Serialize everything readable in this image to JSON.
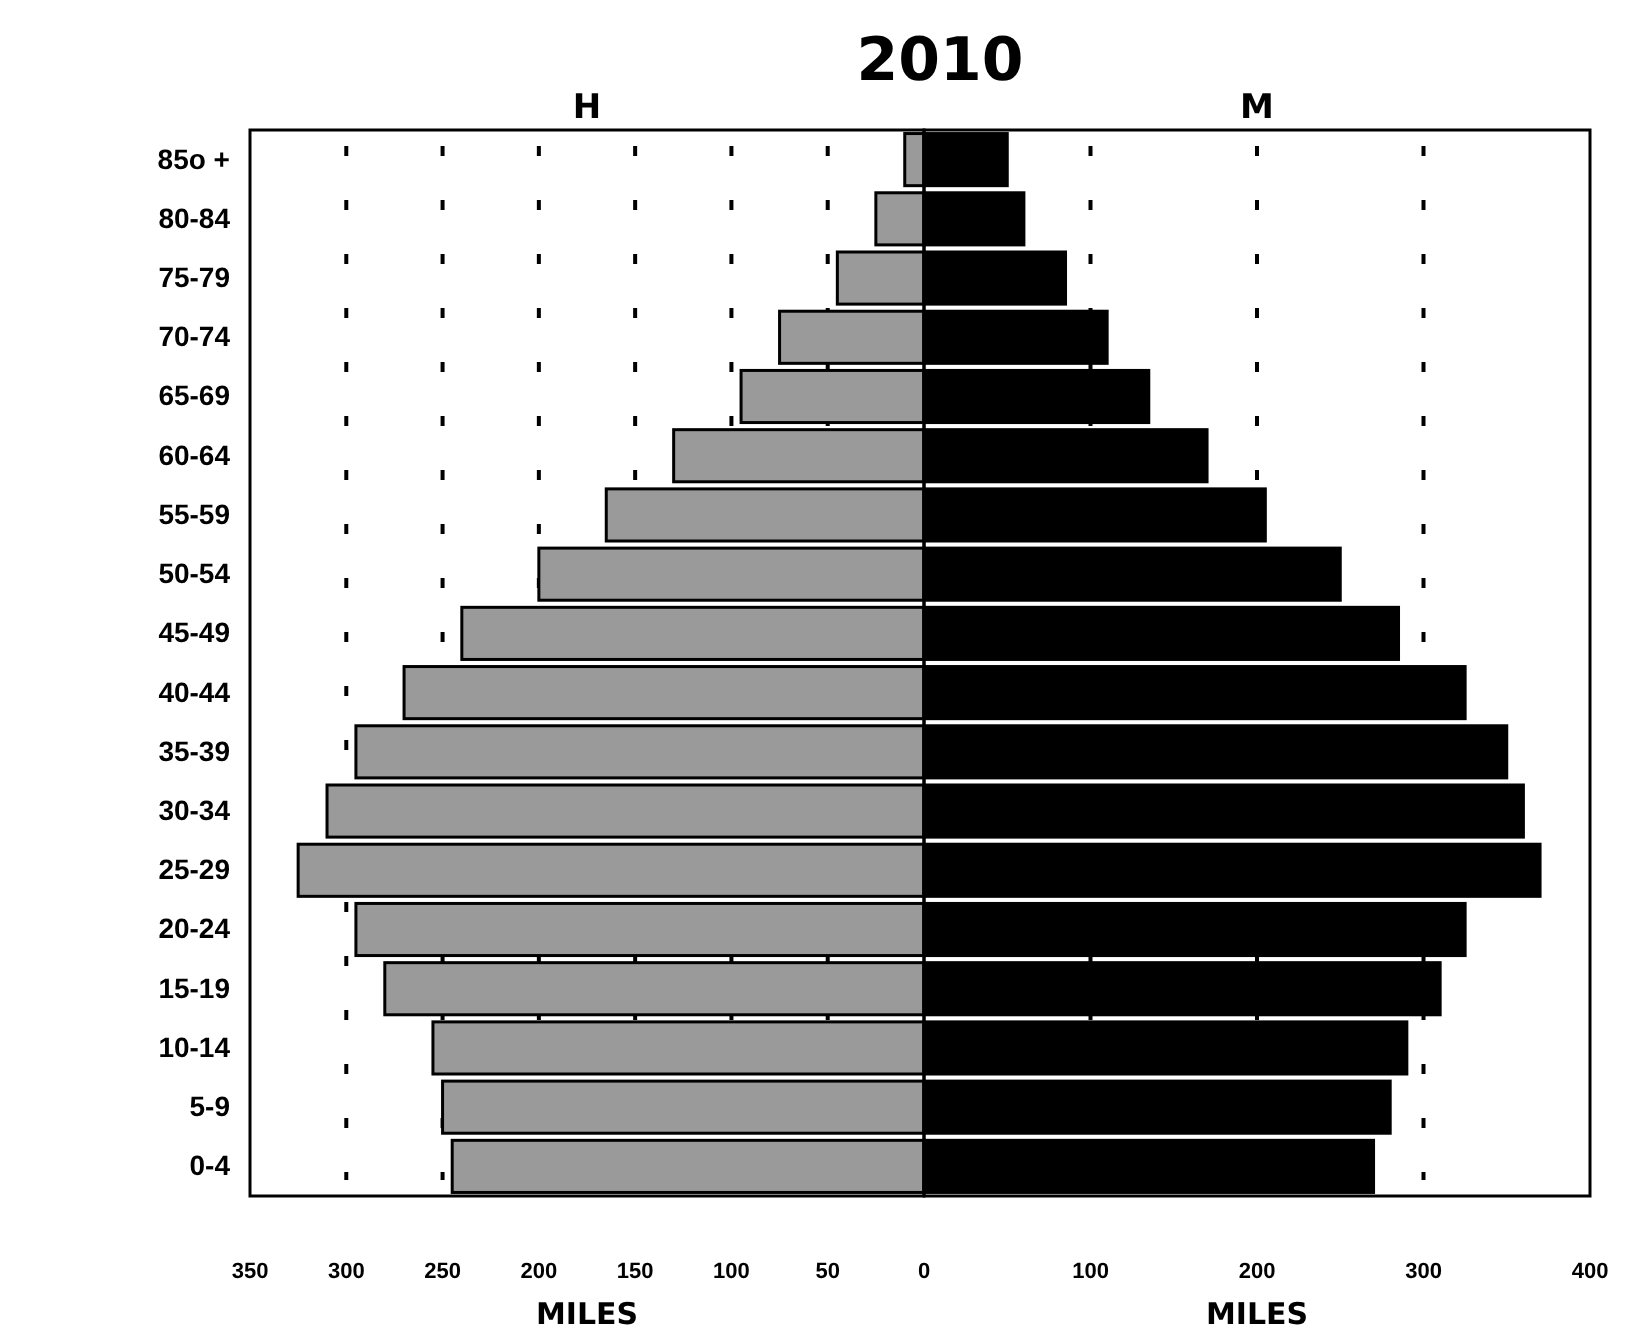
{
  "chart_data": [
    {
      "type": "bar",
      "orientation": "horizontal",
      "title": "H",
      "xlabel": "MILES",
      "annotations": [
        "2010"
      ],
      "categories": [
        "85o +",
        "80-84",
        "75-79",
        "70-74",
        "65-69",
        "60-64",
        "55-59",
        "50-54",
        "45-49",
        "40-44",
        "35-39",
        "30-34",
        "25-29",
        "20-24",
        "15-19",
        "10-14",
        "5-9",
        "0-4"
      ],
      "series": [
        {
          "color": "#9a9a9a",
          "values": [
            10,
            25,
            45,
            75,
            95,
            130,
            165,
            200,
            240,
            270,
            295,
            310,
            325,
            295,
            280,
            255,
            250,
            245
          ]
        }
      ],
      "xlim": [
        350,
        0
      ],
      "xticks": [
        350,
        300,
        250,
        200,
        150,
        100,
        50,
        0
      ],
      "grid": "x"
    },
    {
      "type": "bar",
      "orientation": "horizontal",
      "title": "M",
      "xlabel": "MILES",
      "tick_labels": "x",
      "categories": [
        null,
        null,
        null,
        null,
        null,
        null,
        null,
        null,
        null,
        null,
        null,
        null,
        null,
        null,
        null,
        null,
        null,
        null
      ],
      "series": [
        {
          "color": "#000000",
          "values": [
            50,
            60,
            85,
            110,
            135,
            170,
            205,
            250,
            285,
            325,
            350,
            360,
            370,
            325,
            310,
            290,
            280,
            270
          ]
        }
      ],
      "xlim": [
        0,
        400
      ],
      "xticks": [
        {
          "value": 0,
          "label": null
        },
        100,
        200,
        300,
        400
      ],
      "grid": "x"
    }
  ]
}
